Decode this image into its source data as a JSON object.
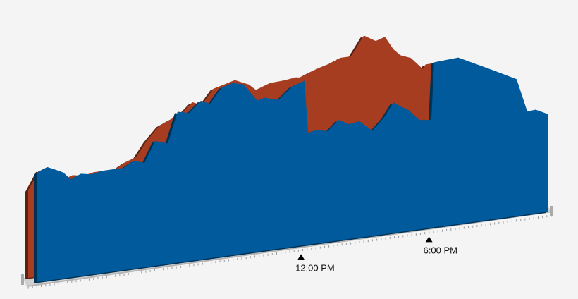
{
  "chart_data": {
    "type": "area3d",
    "x": [
      -0.4,
      0.1,
      0.53,
      0.86,
      1.19,
      1.68,
      2.18,
      2.67,
      3.67,
      4.16,
      4.66,
      5.15,
      5.75,
      6.21,
      6.74,
      7.3,
      7.73,
      8.29,
      8.79,
      9.29,
      9.95,
      10.28,
      10.94,
      11.6,
      12.16,
      12.33,
      12.76,
      13.25,
      13.75,
      14.24,
      14.74,
      15.34,
      15.9,
      16.33,
      16.72,
      17.05,
      17.55,
      18.11,
      18.24,
      19.37,
      21.02,
      22.11,
      22.61,
      23.0,
      23.6
    ],
    "series": [
      {
        "color": "#a63c20",
        "values": [
          124,
          150,
          147,
          142,
          131,
          137,
          134,
          137,
          137,
          145,
          150,
          171,
          190,
          196,
          202,
          217,
          211,
          232,
          236,
          240,
          231,
          222,
          229,
          230,
          232,
          231,
          236,
          241,
          245,
          251,
          251,
          278,
          268,
          272,
          253,
          243,
          237,
          219,
          225,
          226,
          201,
          184,
          136,
          137,
          128
        ]
      },
      {
        "color": "#005a9c",
        "values": [
          155,
          161,
          155,
          150,
          139,
          145,
          142,
          145,
          145,
          153,
          148,
          177,
          171,
          214,
          210,
          225,
          219,
          240,
          244,
          240,
          214,
          217,
          211,
          228,
          233,
          159,
          161,
          157,
          171,
          163,
          165,
          149,
          166,
          185,
          177,
          171,
          155,
          153,
          234,
          236,
          211,
          194,
          146,
          147,
          138
        ]
      }
    ],
    "xlim": [
      -0.4,
      23.6
    ],
    "xticks": [
      {
        "value": 12,
        "label": "12:00 PM"
      },
      {
        "value": 18,
        "label": "6:00 PM"
      }
    ]
  }
}
